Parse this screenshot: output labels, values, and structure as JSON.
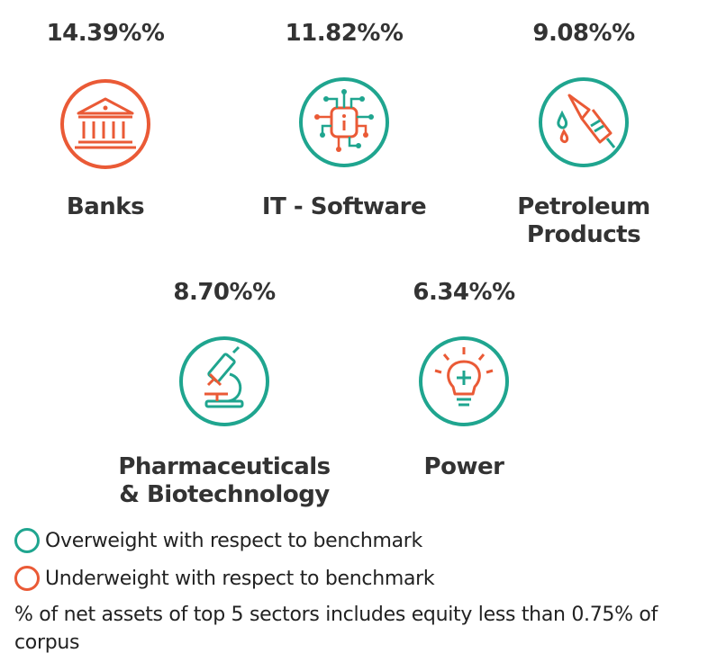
{
  "colors": {
    "overweight": "#1fa58f",
    "underweight": "#ea5a36",
    "text": "#333333"
  },
  "sectors": [
    {
      "percent": "14.39%%",
      "name_line1": "Banks",
      "name_line2": "",
      "icon": "bank-icon",
      "weight": "underweight"
    },
    {
      "percent": "11.82%%",
      "name_line1": "IT - Software",
      "name_line2": "",
      "icon": "chip-icon",
      "weight": "overweight"
    },
    {
      "percent": "9.08%%",
      "name_line1": "Petroleum",
      "name_line2": "Products",
      "icon": "fuel-nozzle-icon",
      "weight": "overweight"
    },
    {
      "percent": "8.70%%",
      "name_line1": "Pharmaceuticals",
      "name_line2": "& Biotechnology",
      "icon": "microscope-icon",
      "weight": "overweight"
    },
    {
      "percent": "6.34%%",
      "name_line1": "Power",
      "name_line2": "",
      "icon": "light-bulb-icon",
      "weight": "overweight"
    }
  ],
  "legend": {
    "overweight": "Overweight with respect to benchmark",
    "underweight": "Underweight with respect to benchmark"
  },
  "note": "% of net assets of top 5 sectors includes equity less than 0.75% of corpus"
}
